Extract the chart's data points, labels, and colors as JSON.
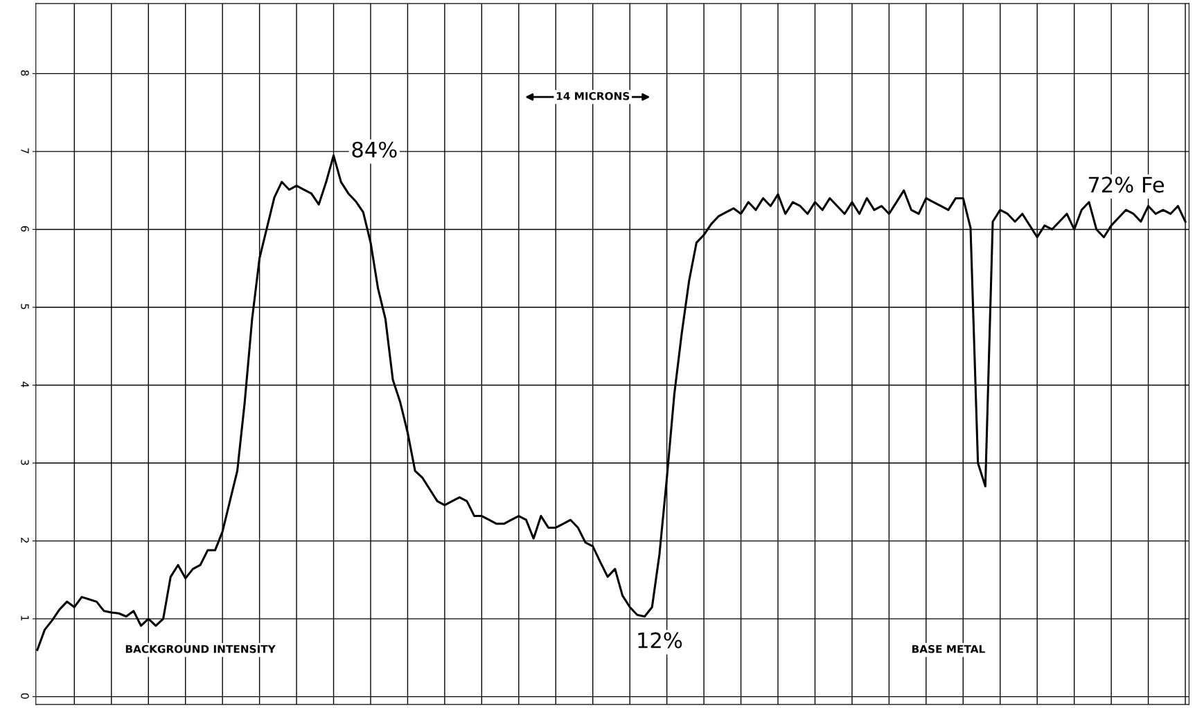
{
  "chart_data": {
    "type": "line",
    "color": "#000000",
    "categories": [
      null,
      null,
      null,
      null,
      null,
      null,
      null,
      null,
      null,
      null,
      null,
      null,
      null,
      null,
      null,
      null,
      null,
      null,
      null,
      null,
      null,
      null,
      null,
      null,
      null,
      null,
      null,
      null,
      null,
      null,
      null,
      null,
      null,
      null,
      null,
      null,
      null,
      null,
      null,
      null,
      null,
      null,
      null,
      null,
      null,
      null,
      null,
      null,
      null,
      null,
      null,
      null,
      null,
      null,
      null,
      null,
      null,
      null,
      null,
      null,
      null,
      null,
      null,
      null,
      null,
      null,
      null,
      null,
      null,
      null,
      null,
      null,
      null,
      null,
      null,
      null,
      null,
      null,
      null,
      null,
      null,
      null,
      null,
      null,
      null,
      null,
      null,
      null,
      null,
      null,
      null,
      null,
      null,
      null,
      null,
      null,
      null,
      null,
      null,
      null,
      null,
      null,
      null,
      null,
      null,
      null,
      null,
      null,
      null,
      null,
      null,
      null,
      null,
      null,
      null,
      null,
      null,
      null,
      null,
      null,
      null,
      null,
      null,
      null,
      null,
      null,
      null,
      null,
      null,
      null,
      null,
      null,
      null,
      null,
      null,
      null,
      null,
      null,
      null,
      null,
      null,
      null,
      null,
      null,
      null,
      null,
      null,
      null,
      null,
      null,
      null,
      null,
      null,
      null,
      null,
      null
    ],
    "values": [
      0.6,
      0.86,
      0.98,
      1.12,
      1.22,
      1.15,
      1.28,
      1.25,
      1.22,
      1.1,
      1.08,
      1.07,
      1.03,
      1.1,
      0.91,
      1.0,
      0.91,
      1.0,
      1.54,
      1.69,
      1.52,
      1.64,
      1.69,
      1.88,
      1.88,
      2.12,
      2.51,
      2.9,
      3.78,
      4.85,
      5.63,
      6.02,
      6.41,
      6.61,
      6.51,
      6.56,
      6.51,
      6.46,
      6.32,
      6.61,
      6.95,
      6.61,
      6.46,
      6.36,
      6.22,
      5.83,
      5.24,
      4.85,
      4.07,
      3.78,
      3.39,
      2.9,
      2.81,
      2.66,
      2.51,
      2.46,
      2.51,
      2.56,
      2.51,
      2.32,
      2.32,
      2.27,
      2.22,
      2.22,
      2.27,
      2.32,
      2.27,
      2.03,
      2.32,
      2.17,
      2.17,
      2.22,
      2.27,
      2.17,
      1.98,
      1.93,
      1.73,
      1.54,
      1.64,
      1.3,
      1.15,
      1.05,
      1.03,
      1.15,
      1.83,
      2.81,
      3.88,
      4.66,
      5.34,
      5.83,
      5.93,
      6.07,
      6.17,
      6.22,
      6.27,
      6.2,
      6.35,
      6.25,
      6.4,
      6.3,
      6.45,
      6.2,
      6.35,
      6.3,
      6.2,
      6.35,
      6.25,
      6.4,
      6.3,
      6.2,
      6.35,
      6.2,
      6.4,
      6.25,
      6.3,
      6.2,
      6.35,
      6.5,
      6.25,
      6.2,
      6.4,
      6.35,
      6.3,
      6.25,
      6.4,
      6.4,
      6.02,
      3.0,
      2.7,
      6.1,
      6.25,
      6.2,
      6.1,
      6.2,
      6.05,
      5.9,
      6.05,
      6.0,
      6.1,
      6.2,
      6.0,
      6.25,
      6.35,
      6.0,
      5.9,
      6.05,
      6.15,
      6.25,
      6.2,
      6.1,
      6.3,
      6.2,
      6.25,
      6.2,
      6.3,
      6.1
    ],
    "ylim": [
      -0.1,
      8.9
    ],
    "yticks": [
      0,
      1,
      2,
      3,
      4,
      5,
      6,
      7,
      8
    ],
    "grid": true,
    "tick_labels": "y",
    "annotations": [
      "84%",
      "14 MICRONS",
      "72% Fe",
      "BACKGROUND INTENSITY",
      "12%",
      "BASE METAL"
    ]
  }
}
